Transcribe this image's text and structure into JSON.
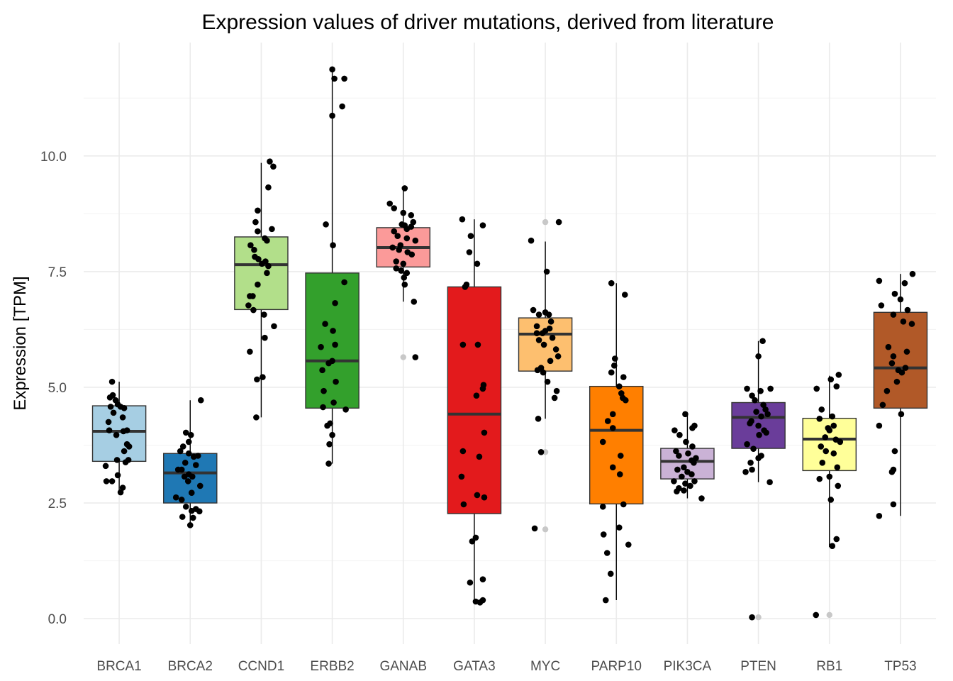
{
  "chart_data": {
    "type": "box",
    "title": "Expression values of driver mutations, derived from literature",
    "xlabel": "",
    "ylabel": "Expression [TPM]",
    "ylim": [
      -0.55,
      12.45
    ],
    "yticks": [
      0.0,
      2.5,
      5.0,
      7.5,
      10.0
    ],
    "ytick_labels": [
      "0.0",
      "2.5",
      "5.0",
      "7.5",
      "10.0"
    ],
    "grid": true,
    "legend": "none",
    "categories": [
      "BRCA1",
      "BRCA2",
      "CCND1",
      "ERBB2",
      "GANAB",
      "GATA3",
      "MYC",
      "PARP10",
      "PIK3CA",
      "PTEN",
      "RB1",
      "TP53"
    ],
    "boxes": [
      {
        "name": "BRCA1",
        "color": "#a6cee3",
        "whisker_low": 2.7,
        "q1": 3.4,
        "median": 4.05,
        "q3": 4.6,
        "whisker_high": 5.12,
        "outliers": []
      },
      {
        "name": "BRCA2",
        "color": "#1f78b4",
        "whisker_low": 2.0,
        "q1": 2.5,
        "median": 3.15,
        "q3": 3.57,
        "whisker_high": 4.72,
        "outliers": []
      },
      {
        "name": "CCND1",
        "color": "#b2df8a",
        "whisker_low": 4.35,
        "q1": 6.68,
        "median": 7.65,
        "q3": 8.25,
        "whisker_high": 9.85,
        "outliers": []
      },
      {
        "name": "ERBB2",
        "color": "#33a02c",
        "whisker_low": 3.35,
        "q1": 4.55,
        "median": 5.57,
        "q3": 7.47,
        "whisker_high": 11.85,
        "outliers": []
      },
      {
        "name": "GANAB",
        "color": "#fb9a99",
        "whisker_low": 6.85,
        "q1": 7.6,
        "median": 8.02,
        "q3": 8.45,
        "whisker_high": 9.3,
        "outliers": [
          5.65
        ]
      },
      {
        "name": "GATA3",
        "color": "#e31a1c",
        "whisker_low": 0.33,
        "q1": 2.27,
        "median": 4.42,
        "q3": 7.17,
        "whisker_high": 8.63,
        "outliers": []
      },
      {
        "name": "MYC",
        "color": "#fdbf6f",
        "whisker_low": 4.32,
        "q1": 5.35,
        "median": 6.15,
        "q3": 6.5,
        "whisker_high": 8.15,
        "outliers": [
          8.57,
          3.6,
          1.93
        ]
      },
      {
        "name": "PARP10",
        "color": "#ff7f00",
        "whisker_low": 0.4,
        "q1": 2.48,
        "median": 4.07,
        "q3": 5.02,
        "whisker_high": 7.25,
        "outliers": []
      },
      {
        "name": "PIK3CA",
        "color": "#cab2d6",
        "whisker_low": 2.6,
        "q1": 3.02,
        "median": 3.4,
        "q3": 3.68,
        "whisker_high": 4.42,
        "outliers": []
      },
      {
        "name": "PTEN",
        "color": "#6a3d9a",
        "whisker_low": 2.95,
        "q1": 3.68,
        "median": 4.35,
        "q3": 4.67,
        "whisker_high": 6.0,
        "outliers": [
          0.03
        ]
      },
      {
        "name": "RB1",
        "color": "#ffff99",
        "whisker_low": 1.55,
        "q1": 3.2,
        "median": 3.88,
        "q3": 4.33,
        "whisker_high": 5.25,
        "outliers": [
          0.08
        ]
      },
      {
        "name": "TP53",
        "color": "#b15928",
        "whisker_low": 2.22,
        "q1": 4.55,
        "median": 5.42,
        "q3": 6.62,
        "whisker_high": 7.45,
        "outliers": []
      }
    ],
    "points": [
      {
        "name": "BRCA1",
        "values": [
          5.12,
          4.83,
          4.78,
          4.72,
          4.63,
          4.58,
          4.58,
          4.55,
          4.45,
          4.35,
          4.25,
          4.07,
          4.07,
          4.05,
          3.97,
          3.77,
          3.72,
          3.62,
          3.43,
          3.43,
          3.38,
          3.3,
          3.1,
          2.97,
          2.97,
          2.83,
          2.73
        ],
        "offsets": [
          -0.1,
          -0.09,
          -0.13,
          -0.05,
          -0.02,
          0.02,
          -0.12,
          0.07,
          -0.08,
          0.05,
          -0.15,
          -0.14,
          0.11,
          0.06,
          -0.04,
          0.11,
          0.14,
          0.07,
          0.13,
          -0.03,
          0.09,
          -0.19,
          -0.02,
          -0.18,
          -0.1,
          0.05,
          0.02
        ]
      },
      {
        "name": "BRCA2",
        "values": [
          4.72,
          4.02,
          3.97,
          3.82,
          3.72,
          3.62,
          3.57,
          3.52,
          3.5,
          3.37,
          3.32,
          3.22,
          3.22,
          3.12,
          3.07,
          3.07,
          2.97,
          2.87,
          2.72,
          2.62,
          2.57,
          2.42,
          2.37,
          2.33,
          2.32,
          2.2,
          2.18,
          2.02
        ],
        "offsets": [
          0.15,
          -0.06,
          0.01,
          -0.02,
          -0.1,
          -0.14,
          -0.02,
          0.11,
          0.05,
          -0.07,
          0.08,
          -0.17,
          -0.12,
          -0.02,
          0.03,
          -0.08,
          -0.03,
          0.14,
          0.02,
          -0.2,
          -0.12,
          -0.06,
          0.08,
          0.02,
          0.13,
          -0.11,
          0.04,
          0.0
        ]
      },
      {
        "name": "CCND1",
        "values": [
          9.88,
          9.77,
          9.32,
          8.82,
          8.57,
          8.42,
          8.37,
          8.22,
          8.17,
          8.07,
          7.97,
          7.82,
          7.77,
          7.72,
          7.67,
          7.62,
          7.47,
          7.22,
          6.97,
          6.97,
          6.77,
          6.67,
          6.57,
          6.32,
          6.07,
          5.77,
          5.22,
          5.17,
          4.35
        ],
        "offsets": [
          0.12,
          0.17,
          0.1,
          -0.05,
          -0.08,
          0.15,
          -0.05,
          0.05,
          0.08,
          -0.15,
          -0.1,
          -0.09,
          -0.04,
          0.06,
          0.01,
          0.1,
          0.08,
          -0.05,
          -0.16,
          -0.12,
          -0.18,
          -0.11,
          0.04,
          0.18,
          0.05,
          -0.16,
          0.02,
          -0.06,
          -0.07
        ]
      },
      {
        "name": "ERBB2",
        "values": [
          11.87,
          11.67,
          11.67,
          11.07,
          10.87,
          8.52,
          8.07,
          7.27,
          6.82,
          6.37,
          6.22,
          5.92,
          5.87,
          5.57,
          5.52,
          5.37,
          5.12,
          4.92,
          4.67,
          4.57,
          4.52,
          4.22,
          4.17,
          3.97,
          3.77,
          3.35
        ],
        "offsets": [
          0.0,
          0.03,
          0.17,
          0.14,
          0.0,
          -0.09,
          0.01,
          0.17,
          0.04,
          -0.1,
          0.01,
          0.04,
          -0.16,
          0.0,
          -0.05,
          -0.14,
          0.05,
          -0.12,
          0.02,
          -0.13,
          0.19,
          -0.03,
          -0.07,
          0.0,
          -0.04,
          -0.05
        ]
      },
      {
        "name": "GANAB",
        "values": [
          9.3,
          8.97,
          8.87,
          8.77,
          8.72,
          8.57,
          8.52,
          8.5,
          8.47,
          8.42,
          8.37,
          8.27,
          8.22,
          8.17,
          8.07,
          8.02,
          7.97,
          7.92,
          7.87,
          7.72,
          7.67,
          7.57,
          7.52,
          7.47,
          7.37,
          7.22,
          6.85,
          5.65
        ],
        "offsets": [
          0.02,
          -0.19,
          -0.13,
          0.0,
          0.11,
          0.14,
          -0.02,
          0.02,
          0.11,
          0.05,
          -0.13,
          -0.08,
          0.05,
          0.17,
          -0.04,
          -0.15,
          -0.06,
          0.06,
          0.12,
          -0.1,
          0.0,
          -0.1,
          -0.03,
          0.05,
          0.01,
          0.02,
          0.15,
          0.17
        ]
      },
      {
        "name": "GATA3",
        "values": [
          8.63,
          8.5,
          8.27,
          7.92,
          7.67,
          7.22,
          7.17,
          5.92,
          5.92,
          5.05,
          4.97,
          4.82,
          4.02,
          3.62,
          3.5,
          3.07,
          2.67,
          2.62,
          2.47,
          1.75,
          1.67,
          0.85,
          0.78,
          0.4,
          0.37,
          0.35
        ],
        "offsets": [
          -0.17,
          0.12,
          -0.05,
          -0.07,
          0.04,
          -0.11,
          -0.13,
          -0.16,
          0.05,
          0.13,
          0.12,
          0.03,
          0.14,
          -0.16,
          0.07,
          -0.18,
          0.04,
          0.14,
          -0.15,
          0.02,
          -0.03,
          0.12,
          -0.06,
          0.12,
          0.02,
          0.08
        ]
      },
      {
        "name": "MYC",
        "values": [
          8.57,
          8.17,
          7.5,
          6.67,
          6.62,
          6.57,
          6.57,
          6.42,
          6.32,
          6.27,
          6.22,
          6.17,
          6.17,
          6.07,
          6.02,
          5.92,
          5.82,
          5.67,
          5.57,
          5.42,
          5.37,
          5.32,
          5.12,
          4.92,
          4.77,
          4.32,
          3.6,
          1.95
        ],
        "offsets": [
          0.19,
          -0.2,
          0.02,
          -0.17,
          0.0,
          0.05,
          -0.09,
          0.08,
          -0.12,
          0.06,
          0.0,
          -0.04,
          -0.12,
          0.1,
          -0.09,
          -0.02,
          0.15,
          0.18,
          0.07,
          -0.06,
          -0.11,
          -0.03,
          0.03,
          0.16,
          0.13,
          -0.1,
          -0.06,
          -0.15
        ]
      },
      {
        "name": "PARP10",
        "values": [
          7.25,
          7.0,
          5.62,
          5.47,
          5.32,
          5.22,
          5.02,
          4.87,
          4.77,
          4.72,
          4.42,
          4.27,
          4.12,
          3.82,
          3.52,
          3.27,
          3.12,
          2.47,
          2.42,
          1.97,
          1.82,
          1.6,
          1.42,
          0.97,
          0.4
        ],
        "offsets": [
          -0.07,
          0.12,
          -0.02,
          -0.03,
          -0.07,
          0.1,
          0.04,
          0.07,
          0.09,
          0.13,
          -0.05,
          -0.12,
          -0.05,
          -0.19,
          0.06,
          -0.05,
          0.05,
          0.1,
          -0.19,
          0.04,
          -0.18,
          0.17,
          -0.13,
          -0.08,
          -0.15
        ]
      },
      {
        "name": "PIK3CA",
        "values": [
          4.42,
          4.17,
          4.12,
          4.07,
          3.97,
          3.82,
          3.72,
          3.62,
          3.57,
          3.52,
          3.47,
          3.42,
          3.37,
          3.27,
          3.22,
          3.17,
          3.12,
          3.07,
          2.97,
          2.97,
          2.92,
          2.87,
          2.82,
          2.77,
          2.75,
          2.6
        ],
        "offsets": [
          -0.03,
          0.1,
          0.07,
          -0.18,
          -0.11,
          -0.02,
          0.07,
          -0.16,
          0.01,
          -0.12,
          0.12,
          0.06,
          0.09,
          -0.05,
          -0.14,
          0.0,
          0.06,
          -0.08,
          0.1,
          -0.19,
          -0.03,
          0.04,
          -0.12,
          -0.05,
          -0.15,
          0.2
        ]
      },
      {
        "name": "PTEN",
        "values": [
          6.0,
          5.67,
          4.97,
          4.97,
          4.92,
          4.82,
          4.72,
          4.62,
          4.52,
          4.47,
          4.42,
          4.37,
          4.27,
          4.22,
          4.17,
          4.07,
          4.02,
          3.97,
          3.77,
          3.67,
          3.52,
          3.47,
          3.37,
          3.22,
          3.17,
          2.95,
          0.03
        ],
        "offsets": [
          0.06,
          0.0,
          -0.16,
          0.17,
          0.03,
          -0.09,
          -0.05,
          0.07,
          0.1,
          -0.03,
          0.13,
          0.04,
          -0.1,
          -0.12,
          0.0,
          0.08,
          0.11,
          0.01,
          -0.16,
          -0.07,
          0.04,
          0.0,
          -0.11,
          -0.09,
          -0.18,
          0.16,
          -0.09
        ]
      },
      {
        "name": "RB1",
        "values": [
          5.27,
          5.17,
          5.02,
          4.97,
          4.52,
          4.37,
          4.32,
          4.17,
          4.12,
          4.07,
          3.92,
          3.87,
          3.82,
          3.72,
          3.62,
          3.57,
          3.37,
          3.27,
          3.07,
          3.02,
          2.87,
          2.57,
          1.72,
          1.57,
          0.08
        ],
        "offsets": [
          0.13,
          0.02,
          0.1,
          -0.18,
          -0.11,
          0.04,
          -0.14,
          0.06,
          -0.02,
          0.0,
          -0.06,
          0.09,
          0.15,
          -0.12,
          -0.05,
          0.06,
          -0.1,
          0.11,
          0.0,
          -0.14,
          0.12,
          0.02,
          0.1,
          0.04,
          -0.19
        ]
      },
      {
        "name": "TP53",
        "values": [
          7.45,
          7.3,
          7.25,
          7.02,
          6.9,
          6.77,
          6.67,
          6.57,
          6.42,
          6.37,
          5.87,
          5.77,
          5.67,
          5.52,
          5.42,
          5.37,
          5.32,
          5.12,
          4.92,
          4.62,
          4.42,
          4.17,
          3.62,
          3.22,
          3.17,
          2.47,
          2.22
        ],
        "offsets": [
          0.17,
          -0.3,
          0.06,
          -0.08,
          0.0,
          -0.27,
          0.1,
          -0.1,
          0.04,
          0.16,
          -0.17,
          0.09,
          -0.1,
          -0.12,
          0.07,
          -0.03,
          0.02,
          -0.05,
          -0.19,
          -0.25,
          0.01,
          -0.3,
          -0.08,
          -0.1,
          -0.12,
          -0.1,
          -0.3
        ]
      }
    ]
  }
}
